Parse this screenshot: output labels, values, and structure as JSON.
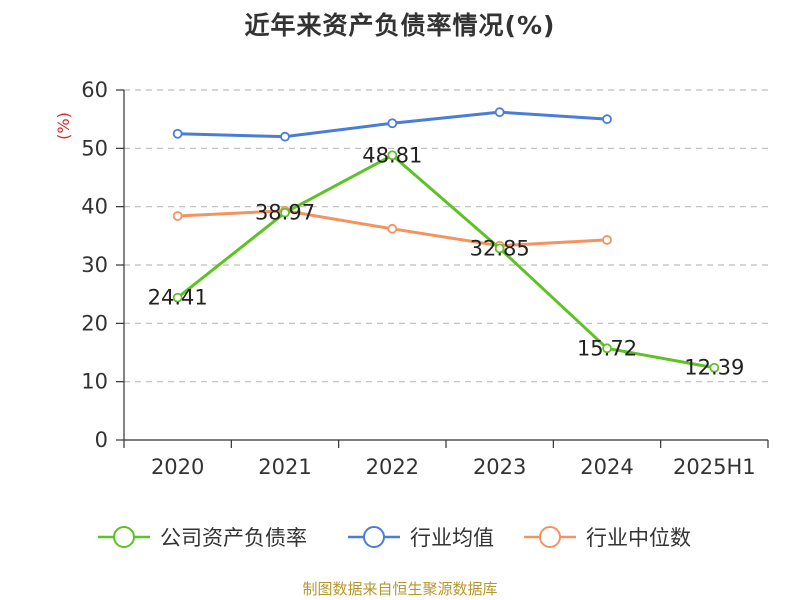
{
  "title": "近年来资产负债率情况(%)",
  "source": "制图数据来自恒生聚源数据库",
  "chart_data": {
    "type": "line",
    "title": "近年来资产负债率情况(%)",
    "ylabel": "(%)",
    "xlabel": "",
    "ylim": [
      0,
      60
    ],
    "yticks": [
      0,
      10,
      20,
      30,
      40,
      50,
      60
    ],
    "categories": [
      "2020",
      "2021",
      "2022",
      "2023",
      "2024",
      "2025H1"
    ],
    "grid": "horizontal dashed",
    "legend_position": "bottom",
    "series": [
      {
        "name": "公司资产负债率",
        "color": "#5ec224",
        "values": [
          24.41,
          38.97,
          48.81,
          32.85,
          15.72,
          12.39
        ],
        "labels": [
          "24.41",
          "38.97",
          "48.81",
          "32.85",
          "15.72",
          "12.39"
        ]
      },
      {
        "name": "行业均值",
        "color": "#4a7ed6",
        "values": [
          52.5,
          52.0,
          54.3,
          56.2,
          55.0,
          null
        ]
      },
      {
        "name": "行业中位数",
        "color": "#f59360",
        "values": [
          38.4,
          39.3,
          36.2,
          33.3,
          34.3,
          null
        ]
      }
    ]
  }
}
